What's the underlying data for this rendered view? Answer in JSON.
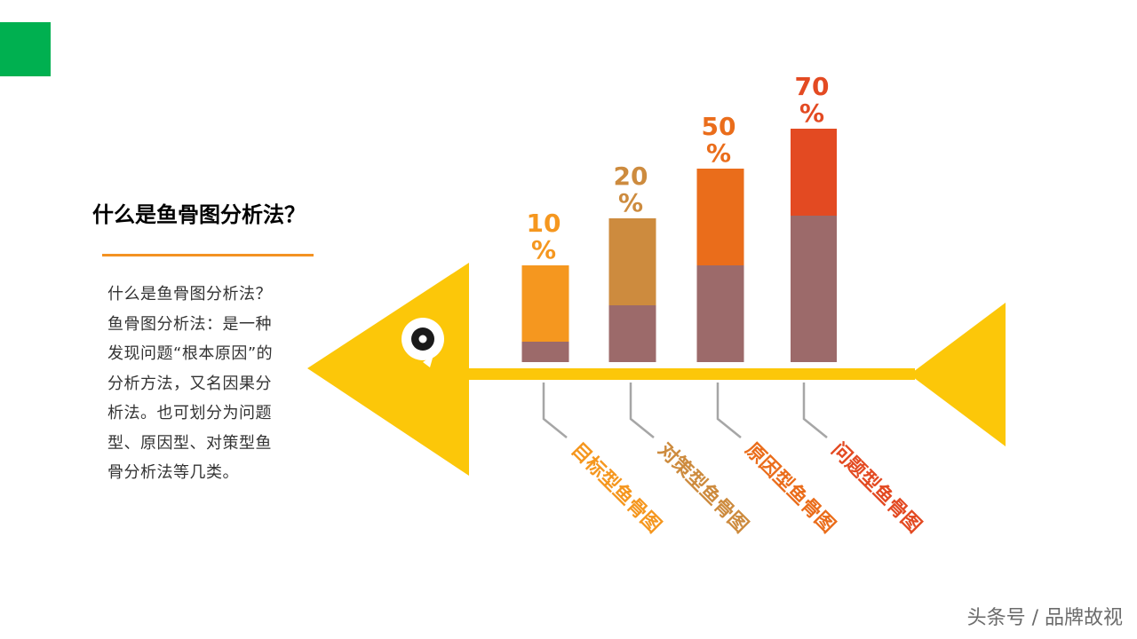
{
  "page": {
    "title": "什么是鱼骨图分析法？",
    "description": "什么是鱼骨图分析法？鱼骨图分析法：是一种发现问题“根本原因”的分析方法，又名因果分析法。也可划分为问题型、原因型、对策型鱼骨分析法等几类。",
    "watermark": "头条号 / 品牌故视"
  },
  "colors": {
    "accent_green": "#00b050",
    "underline": "#f39222",
    "fish": "#fcc709",
    "stem": "#9c6a6a"
  },
  "chart_data": {
    "type": "bar",
    "categories": [
      "目标型鱼骨图",
      "对策型鱼骨图",
      "原因型鱼骨图",
      "问题型鱼骨图"
    ],
    "values": [
      10,
      20,
      50,
      70
    ],
    "value_labels": [
      "10\n%",
      "20\n%",
      "50\n%",
      "70\n%"
    ],
    "bar_colors": [
      "#f5971f",
      "#cd8b3e",
      "#ea6d1b",
      "#e34a22"
    ],
    "base_color": "#9c6a6a",
    "title": "",
    "xlabel": "",
    "ylabel": "",
    "grid": false,
    "legend": "none"
  }
}
